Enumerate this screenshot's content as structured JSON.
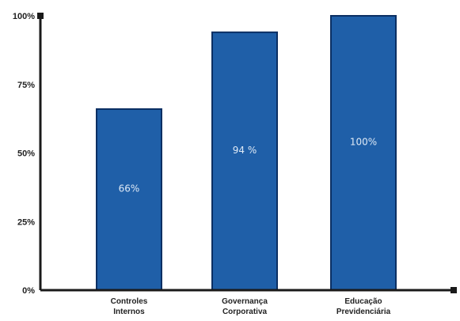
{
  "chart_data": {
    "type": "bar",
    "categories": [
      [
        "Controles",
        "Internos"
      ],
      [
        "Governança",
        "Corporativa"
      ],
      [
        "Educação",
        "Previdenciária"
      ]
    ],
    "values": [
      66,
      94,
      100
    ],
    "data_labels": [
      "66%",
      "94 %",
      "100%"
    ],
    "ylim": [
      0,
      100
    ],
    "yticks": [
      {
        "value": 0,
        "label": "0%"
      },
      {
        "value": 25,
        "label": "25%"
      },
      {
        "value": 50,
        "label": "50%"
      },
      {
        "value": 75,
        "label": "75%"
      },
      {
        "value": 100,
        "label": "100%"
      }
    ],
    "grid": false,
    "legend": "none",
    "colors": {
      "bar_fill": "#1f5fa8",
      "bar_stroke": "#0b2f63",
      "axis": "#1a1a1a",
      "data_label": "#dfeaf6"
    }
  }
}
